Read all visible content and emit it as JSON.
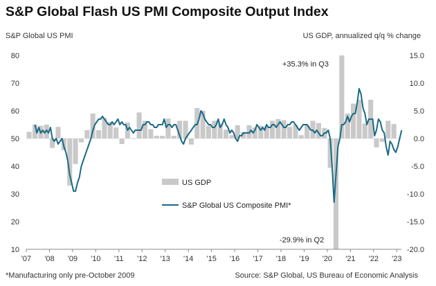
{
  "title": "S&P Global Flash US PMI Composite Output Index",
  "left_axis_title": "S&P Global US PMI",
  "right_axis_title": "US GDP, annualized q/q % change",
  "footnote": "*Manufacturing only pre-October 2009",
  "source": "Source: S&P Global,  US Bureau of Economic Analysis",
  "colors": {
    "pmi_line": "#1a6a85",
    "gdp_bars": "#c9c9c9",
    "axis": "#888888"
  },
  "chart_data": {
    "type": "bar+line",
    "left_axis": {
      "ylim": [
        10,
        80
      ],
      "ticks": [
        "80",
        "70",
        "60",
        "50",
        "40",
        "30",
        "20",
        "10"
      ]
    },
    "right_axis": {
      "ylim": [
        -20,
        15
      ],
      "ticks": [
        "15.0",
        "10.0",
        "5.0",
        "0.0",
        "-5.0",
        "-10.0",
        "-15.0",
        "-20.0"
      ]
    },
    "x_ticks": [
      "'07",
      "'08",
      "'09",
      "'10",
      "'11",
      "'12",
      "'13",
      "'14",
      "'15",
      "'16",
      "'17",
      "'18",
      "'19",
      "'20",
      "'21",
      "'22",
      "'23"
    ],
    "legend": {
      "gdp": "US GDP",
      "pmi": "S&P Global US Composite PMI*"
    },
    "annotations": {
      "q3": "+35.3% in Q3",
      "q2": "-29.9% in Q2"
    },
    "gdp_series": {
      "name": "US GDP",
      "axis": "right",
      "x": [
        "2007 Q1",
        "2007 Q2",
        "2007 Q3",
        "2007 Q4",
        "2008 Q1",
        "2008 Q2",
        "2008 Q3",
        "2008 Q4",
        "2009 Q1",
        "2009 Q2",
        "2009 Q3",
        "2009 Q4",
        "2010 Q1",
        "2010 Q2",
        "2010 Q3",
        "2010 Q4",
        "2011 Q1",
        "2011 Q2",
        "2011 Q3",
        "2011 Q4",
        "2012 Q1",
        "2012 Q2",
        "2012 Q3",
        "2012 Q4",
        "2013 Q1",
        "2013 Q2",
        "2013 Q3",
        "2013 Q4",
        "2014 Q1",
        "2014 Q2",
        "2014 Q3",
        "2014 Q4",
        "2015 Q1",
        "2015 Q2",
        "2015 Q3",
        "2015 Q4",
        "2016 Q1",
        "2016 Q2",
        "2016 Q3",
        "2016 Q4",
        "2017 Q1",
        "2017 Q2",
        "2017 Q3",
        "2017 Q4",
        "2018 Q1",
        "2018 Q2",
        "2018 Q3",
        "2018 Q4",
        "2019 Q1",
        "2019 Q2",
        "2019 Q3",
        "2019 Q4",
        "2020 Q1",
        "2020 Q2",
        "2020 Q3",
        "2020 Q4",
        "2021 Q1",
        "2021 Q2",
        "2021 Q3",
        "2021 Q4",
        "2022 Q1",
        "2022 Q2",
        "2022 Q3",
        "2022 Q4"
      ],
      "values": [
        1.2,
        2.5,
        2.3,
        2.5,
        -1.7,
        2.1,
        -2.1,
        -8.5,
        -4.6,
        -0.7,
        1.5,
        4.5,
        1.5,
        3.7,
        3.0,
        2.0,
        -1.0,
        2.9,
        -0.1,
        4.7,
        3.2,
        1.7,
        0.5,
        0.5,
        3.6,
        0.5,
        3.2,
        3.2,
        -1.1,
        5.5,
        5.0,
        2.3,
        3.2,
        2.7,
        1.6,
        0.6,
        2.4,
        1.2,
        2.4,
        2.0,
        2.3,
        2.2,
        3.2,
        3.5,
        3.3,
        2.1,
        2.5,
        0.6,
        2.4,
        3.2,
        2.8,
        1.9,
        -5.3,
        -29.9,
        35.3,
        4.5,
        6.3,
        7.0,
        2.7,
        7.0,
        -1.6,
        -0.6,
        3.2,
        2.6
      ]
    },
    "pmi_series": {
      "name": "S&P Global US Composite PMI*",
      "axis": "left",
      "x": [
        "2007-05",
        "2007-06",
        "2007-07",
        "2007-08",
        "2007-09",
        "2007-10",
        "2007-11",
        "2007-12",
        "2008-01",
        "2008-02",
        "2008-03",
        "2008-04",
        "2008-05",
        "2008-06",
        "2008-07",
        "2008-08",
        "2008-09",
        "2008-10",
        "2008-11",
        "2008-12",
        "2009-01",
        "2009-02",
        "2009-03",
        "2009-04",
        "2009-05",
        "2009-06",
        "2009-07",
        "2009-08",
        "2009-09",
        "2009-10",
        "2009-11",
        "2009-12",
        "2010-01",
        "2010-02",
        "2010-03",
        "2010-04",
        "2010-05",
        "2010-06",
        "2010-07",
        "2010-08",
        "2010-09",
        "2010-10",
        "2010-11",
        "2010-12",
        "2011-01",
        "2011-02",
        "2011-03",
        "2011-04",
        "2011-05",
        "2011-06",
        "2011-07",
        "2011-08",
        "2011-09",
        "2011-10",
        "2011-11",
        "2011-12",
        "2012-01",
        "2012-02",
        "2012-03",
        "2012-04",
        "2012-05",
        "2012-06",
        "2012-07",
        "2012-08",
        "2012-09",
        "2012-10",
        "2012-11",
        "2012-12",
        "2013-01",
        "2013-02",
        "2013-03",
        "2013-04",
        "2013-05",
        "2013-06",
        "2013-07",
        "2013-08",
        "2013-09",
        "2013-10",
        "2013-11",
        "2013-12",
        "2014-01",
        "2014-02",
        "2014-03",
        "2014-04",
        "2014-05",
        "2014-06",
        "2014-07",
        "2014-08",
        "2014-09",
        "2014-10",
        "2014-11",
        "2014-12",
        "2015-01",
        "2015-02",
        "2015-03",
        "2015-04",
        "2015-05",
        "2015-06",
        "2015-07",
        "2015-08",
        "2015-09",
        "2015-10",
        "2015-11",
        "2015-12",
        "2016-01",
        "2016-02",
        "2016-03",
        "2016-04",
        "2016-05",
        "2016-06",
        "2016-07",
        "2016-08",
        "2016-09",
        "2016-10",
        "2016-11",
        "2016-12",
        "2017-01",
        "2017-02",
        "2017-03",
        "2017-04",
        "2017-05",
        "2017-06",
        "2017-07",
        "2017-08",
        "2017-09",
        "2017-10",
        "2017-11",
        "2017-12",
        "2018-01",
        "2018-02",
        "2018-03",
        "2018-04",
        "2018-05",
        "2018-06",
        "2018-07",
        "2018-08",
        "2018-09",
        "2018-10",
        "2018-11",
        "2018-12",
        "2019-01",
        "2019-02",
        "2019-03",
        "2019-04",
        "2019-05",
        "2019-06",
        "2019-07",
        "2019-08",
        "2019-09",
        "2019-10",
        "2019-11",
        "2019-12",
        "2020-01",
        "2020-02",
        "2020-03",
        "2020-04",
        "2020-05",
        "2020-06",
        "2020-07",
        "2020-08",
        "2020-09",
        "2020-10",
        "2020-11",
        "2020-12",
        "2021-01",
        "2021-02",
        "2021-03",
        "2021-04",
        "2021-05",
        "2021-06",
        "2021-07",
        "2021-08",
        "2021-09",
        "2021-10",
        "2021-11",
        "2021-12",
        "2022-01",
        "2022-02",
        "2022-03",
        "2022-04",
        "2022-05",
        "2022-06",
        "2022-07",
        "2022-08",
        "2022-09",
        "2022-10",
        "2022-11",
        "2022-12",
        "2023-01",
        "2023-02",
        "2023-03"
      ],
      "values": [
        55,
        52,
        54,
        52,
        53,
        52,
        53,
        52,
        54,
        50,
        49,
        50,
        48,
        49,
        50,
        47,
        45,
        42,
        37,
        34,
        31,
        31,
        34,
        36,
        40,
        42,
        44,
        46,
        48,
        50,
        53,
        55,
        56,
        57,
        57,
        58,
        57,
        56,
        55,
        55,
        56,
        55,
        56,
        57,
        55,
        56,
        55,
        55,
        53,
        54,
        53,
        52,
        53,
        53,
        53,
        53,
        55,
        55,
        56,
        56,
        55,
        55,
        54,
        54,
        55,
        55,
        55,
        57,
        54,
        55,
        55,
        54,
        55,
        55,
        53,
        51,
        49,
        48,
        50,
        51,
        52,
        53,
        54,
        55,
        55,
        57,
        60,
        59,
        57,
        56,
        55,
        55,
        54,
        54,
        55,
        57,
        54,
        55,
        57,
        55,
        54,
        52,
        53,
        52,
        50,
        49,
        51,
        51,
        52,
        52,
        52,
        52,
        53,
        52,
        53,
        55,
        54,
        53,
        54,
        53,
        55,
        54,
        54,
        55,
        55,
        54,
        55,
        56,
        55,
        54,
        54,
        55,
        55,
        56,
        56,
        55,
        54,
        53,
        54,
        55,
        55,
        55,
        54,
        53,
        53,
        52,
        53,
        52,
        51,
        51,
        52,
        52,
        53,
        50,
        40,
        27,
        37,
        47,
        50,
        55,
        55,
        56,
        58,
        56,
        58,
        59,
        59,
        63,
        68,
        66,
        61,
        59,
        55,
        57,
        57,
        57,
        51,
        53,
        57,
        56,
        53,
        52,
        47,
        44,
        49,
        48,
        46,
        45,
        47,
        50,
        53
      ]
    }
  }
}
